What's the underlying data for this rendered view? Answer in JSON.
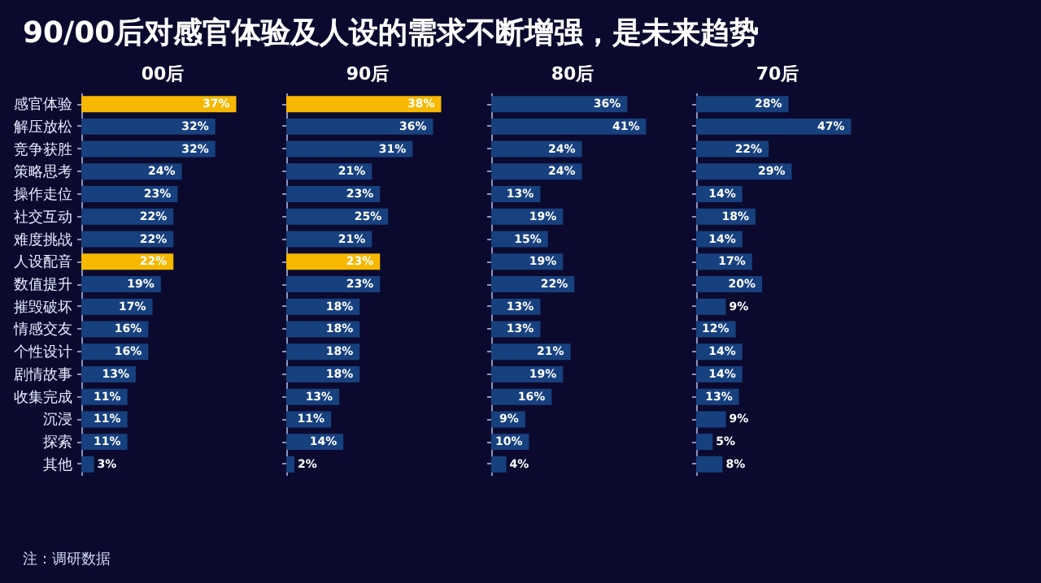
{
  "chart_data": [
    {
      "type": "other",
      "title": "90/00后对感官体验及人设的需求不断增强，是未来趋势",
      "annotations": [
        "注：调研数据"
      ]
    },
    {
      "type": "bar",
      "orientation": "horizontal",
      "title": "00后",
      "tick_labels": "y",
      "categories": [
        "感官体验",
        "解压放松",
        "竞争获胜",
        "策略思考",
        "操作走位",
        "社交互动",
        "难度挑战",
        "人设配音",
        "数值提升",
        "摧毁破坏",
        "情感交友",
        "个性设计",
        "剧情故事",
        "收集完成",
        "沉浸",
        "探索",
        "其他"
      ],
      "values": [
        37,
        32,
        32,
        24,
        23,
        22,
        22,
        22,
        19,
        17,
        16,
        16,
        13,
        11,
        11,
        11,
        3
      ],
      "value_labels": [
        "37%",
        "32%",
        "32%",
        "24%",
        "23%",
        "22%",
        "22%",
        "22%",
        "19%",
        "17%",
        "16%",
        "16%",
        "13%",
        "11%",
        "11%",
        "11%",
        "3%"
      ],
      "colors": [
        "#f6b800",
        "#17407e",
        "#17407e",
        "#17407e",
        "#17407e",
        "#17407e",
        "#17407e",
        "#f6b800",
        "#17407e",
        "#17407e",
        "#17407e",
        "#17407e",
        "#17407e",
        "#17407e",
        "#17407e",
        "#17407e",
        "#17407e"
      ]
    },
    {
      "type": "bar",
      "orientation": "horizontal",
      "title": "90后",
      "tick_labels": false,
      "values": [
        38,
        36,
        31,
        21,
        23,
        25,
        21,
        23,
        23,
        18,
        18,
        18,
        18,
        13,
        11,
        14,
        2
      ],
      "value_labels": [
        "38%",
        "36%",
        "31%",
        "21%",
        "23%",
        "25%",
        "21%",
        "23%",
        "23%",
        "18%",
        "18%",
        "18%",
        "18%",
        "13%",
        "11%",
        "14%",
        "2%"
      ],
      "colors": [
        "#f6b800",
        "#17407e",
        "#17407e",
        "#17407e",
        "#17407e",
        "#17407e",
        "#17407e",
        "#f6b800",
        "#17407e",
        "#17407e",
        "#17407e",
        "#17407e",
        "#17407e",
        "#17407e",
        "#17407e",
        "#17407e",
        "#17407e"
      ]
    },
    {
      "type": "bar",
      "orientation": "horizontal",
      "title": "80后",
      "tick_labels": false,
      "values": [
        36,
        41,
        24,
        24,
        13,
        19,
        15,
        19,
        22,
        13,
        13,
        21,
        19,
        16,
        9,
        10,
        4
      ],
      "value_labels": [
        "36%",
        "41%",
        "24%",
        "24%",
        "13%",
        "19%",
        "15%",
        "19%",
        "22%",
        "13%",
        "13%",
        "21%",
        "19%",
        "16%",
        "9%",
        "10%",
        "4%"
      ],
      "color": "#17407e"
    },
    {
      "type": "bar",
      "orientation": "horizontal",
      "title": "70后",
      "tick_labels": false,
      "values": [
        28,
        47,
        22,
        29,
        14,
        18,
        14,
        17,
        20,
        9,
        12,
        14,
        14,
        13,
        9,
        5,
        8
      ],
      "value_labels": [
        "28%",
        "47%",
        "22%",
        "29%",
        "14%",
        "18%",
        "14%",
        "17%",
        "20%",
        "9%",
        "12%",
        "14%",
        "14%",
        "13%",
        "9%",
        "5%",
        "8%"
      ],
      "color": "#17407e"
    }
  ]
}
